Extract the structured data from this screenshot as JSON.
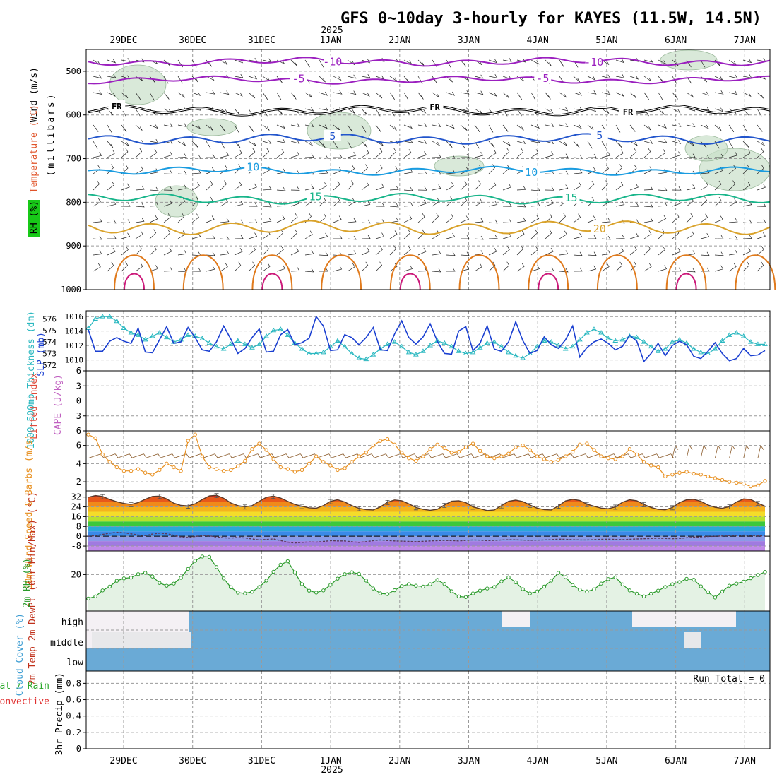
{
  "chart_data": {
    "type": "meteogram",
    "title": "GFS 0~10day 3-hourly for KAYES (11.5W, 14.5N)",
    "year_label": "2025",
    "date_ticks": [
      "29DEC",
      "30DEC",
      "31DEC",
      "1JAN",
      "2JAN",
      "3JAN",
      "4JAN",
      "5JAN",
      "6JAN",
      "7JAN"
    ],
    "run_total": "Run Total = 0",
    "colors": {
      "temp_purple": "#9b1fbf",
      "temp_black": "#000000",
      "temp_blue": "#2255cc",
      "temp_cyan": "#1a9ce0",
      "temp_green": "#18b58a",
      "temp_gold": "#d9a22a",
      "temp_orange": "#e07a1c",
      "temp_magenta": "#cc1a7a",
      "rh_fill": "#c9dfc9",
      "slp": "#1a3fd1",
      "thickness": "#2ab8c0",
      "wind10": "#e89020",
      "cloud": "#6aaad6",
      "rh2m": "#2a9a2a"
    },
    "upper": {
      "ylabel_wind": "Wind (m/s)",
      "ylabel_temp": "Temperature (°C)",
      "ylabel_rh": "RH (%)",
      "ylabel_units": "(millibars)",
      "yticks": [
        500,
        600,
        700,
        800,
        900,
        1000
      ],
      "ylim": [
        450,
        1000
      ],
      "isotherms": [
        {
          "label": "-10",
          "color": "temp_purple",
          "level": 478,
          "amp": 6,
          "labels_at": [
            0.36,
            0.74
          ]
        },
        {
          "label": "-5",
          "color": "temp_purple",
          "level": 520,
          "amp": 5,
          "labels_at": [
            0.31,
            0.67
          ]
        },
        {
          "label": "FR",
          "color": "temp_black",
          "level": 590,
          "amp": 7,
          "labels_at": [
            0.04,
            0.51,
            0.79
          ]
        },
        {
          "label": "5",
          "color": "temp_blue",
          "level": 655,
          "amp": 8,
          "labels_at": [
            0.36,
            0.75
          ]
        },
        {
          "label": "10",
          "color": "temp_cyan",
          "level": 728,
          "amp": 6,
          "labels_at": [
            0.24,
            0.65
          ]
        },
        {
          "label": "15",
          "color": "temp_green",
          "level": 792,
          "amp": 8,
          "labels_at": [
            0.33,
            0.71
          ]
        },
        {
          "label": "20",
          "color": "temp_gold",
          "level": 858,
          "amp": 12,
          "labels_at": [
            0.75
          ]
        }
      ]
    },
    "slp_panel": {
      "ylabel_slp": "SLP (mb)",
      "ylabel_thick": "1000-500mb Thickness (dm)",
      "slp_ticks": [
        1010,
        1012,
        1014,
        1016
      ],
      "thick_ticks": [
        572,
        573,
        574,
        575,
        576
      ],
      "slp_range": [
        1008.5,
        1016.8
      ],
      "thick_range": [
        571.5,
        576.7
      ],
      "slp": [
        1014.2,
        1011.2,
        1011.2,
        1012.6,
        1013.1,
        1012.6,
        1012.3,
        1014.4,
        1011.1,
        1011.0,
        1012.8,
        1014.6,
        1012.3,
        1012.5,
        1014.5,
        1013.1,
        1011.4,
        1011.2,
        1012.5,
        1014.7,
        1012.9,
        1010.9,
        1011.6,
        1013.1,
        1014.3,
        1011.1,
        1011.2,
        1013.5,
        1014.2,
        1012.1,
        1012.4,
        1013.0,
        1016.0,
        1014.7,
        1011.3,
        1011.4,
        1013.5,
        1013.1,
        1012.1,
        1013.1,
        1014.5,
        1011.4,
        1011.3,
        1013.6,
        1015.4,
        1013.1,
        1012.2,
        1013.2,
        1015.0,
        1012.6,
        1010.9,
        1010.8,
        1014.0,
        1014.6,
        1011.3,
        1012.3,
        1014.7,
        1011.5,
        1011.2,
        1012.5,
        1015.3,
        1012.7,
        1010.9,
        1011.3,
        1013.2,
        1012.1,
        1011.6,
        1012.8,
        1014.7,
        1010.4,
        1011.7,
        1012.5,
        1012.9,
        1012.3,
        1011.4,
        1011.9,
        1013.4,
        1012.6,
        1009.8,
        1010.9,
        1012.3,
        1010.6,
        1012.0,
        1012.6,
        1012.1,
        1010.5,
        1010.2,
        1011.2,
        1012.4,
        1010.9,
        1009.9,
        1010.2,
        1011.6,
        1010.6,
        1010.7,
        1011.3
      ],
      "thickness": [
        575.2,
        576.0,
        576.2,
        576.2,
        575.8,
        575.2,
        574.8,
        574.6,
        574.2,
        574.5,
        574.8,
        574.4,
        574.0,
        574.2,
        574.6,
        574.5,
        574.3,
        573.9,
        573.6,
        573.4,
        573.8,
        574.1,
        573.8,
        573.5,
        573.8,
        574.5,
        575.0,
        575.1,
        574.6,
        573.9,
        573.4,
        573.0,
        573.0,
        573.1,
        573.6,
        574.1,
        573.6,
        573.0,
        572.6,
        572.5,
        572.9,
        573.4,
        573.8,
        574.0,
        573.6,
        573.1,
        572.9,
        573.2,
        573.7,
        574.1,
        573.9,
        573.6,
        573.2,
        573.0,
        573.1,
        573.5,
        573.9,
        574.0,
        573.6,
        573.1,
        572.8,
        572.6,
        573.0,
        573.6,
        574.1,
        574.0,
        573.7,
        573.4,
        573.6,
        574.2,
        574.8,
        575.1,
        574.8,
        574.3,
        574.1,
        574.2,
        574.5,
        574.4,
        574.0,
        573.6,
        573.2,
        573.4,
        574.0,
        574.2,
        573.9,
        573.4,
        573.1,
        573.0,
        573.4,
        574.1,
        574.6,
        574.8,
        574.5,
        574.0,
        573.8,
        573.8
      ]
    },
    "cape_panel": {
      "ylabel_li": "Lifted Index",
      "ylabel_cape": "CAPE (J/kg)",
      "yticks": [
        -6,
        -3,
        0,
        3,
        6
      ],
      "tick_labels": [
        "6",
        "3",
        "0",
        "3",
        "6"
      ]
    },
    "wind10_panel": {
      "ylabel": "10m Wind Speed & Barbs (m/s)",
      "yticks": [
        2,
        4,
        6
      ],
      "ylim": [
        1,
        7.6
      ],
      "speed": [
        7.2,
        6.8,
        5.0,
        4.2,
        3.6,
        3.2,
        3.2,
        3.4,
        3.0,
        2.8,
        3.3,
        4.0,
        3.6,
        3.2,
        6.5,
        7.2,
        4.8,
        3.6,
        3.4,
        3.2,
        3.3,
        3.7,
        4.3,
        5.6,
        6.2,
        5.5,
        4.5,
        3.6,
        3.4,
        3.1,
        3.3,
        4.0,
        4.8,
        4.2,
        3.8,
        3.3,
        3.5,
        4.2,
        4.8,
        5.2,
        6.0,
        6.5,
        6.7,
        6.1,
        5.2,
        4.6,
        4.3,
        4.8,
        5.6,
        6.1,
        5.7,
        5.2,
        5.3,
        5.8,
        6.2,
        5.4,
        4.8,
        4.6,
        4.8,
        5.1,
        5.8,
        6.0,
        5.5,
        4.8,
        4.5,
        4.2,
        4.4,
        4.8,
        5.3,
        6.1,
        6.2,
        5.5,
        4.8,
        4.6,
        4.5,
        4.8,
        5.6,
        5.0,
        4.2,
        3.8,
        3.6,
        2.6,
        2.8,
        3.0,
        3.1,
        2.9,
        2.8,
        2.6,
        2.4,
        2.2,
        2.0,
        1.9,
        1.8,
        1.5,
        1.6,
        2.1
      ]
    },
    "temp2m_panel": {
      "ylabel": "2m Temp 2m DewPt (6hr Min/Max) (°C)",
      "yticks": [
        -8,
        0,
        8,
        16,
        24,
        32
      ],
      "ylim": [
        -12,
        37
      ],
      "temp": [
        31.8,
        33.2,
        32.5,
        30.0,
        28.2,
        26.8,
        26.0,
        27.5,
        30.2,
        32.5,
        32.8,
        30.5,
        27.0,
        25.2,
        24.8,
        26.5,
        30.0,
        32.9,
        33.4,
        31.0,
        27.2,
        25.0,
        24.1,
        25.0,
        28.5,
        31.8,
        32.8,
        31.2,
        28.5,
        26.0,
        24.5,
        23.2,
        22.9,
        25.0,
        28.5,
        29.8,
        28.0,
        25.0,
        22.8,
        21.8,
        21.5,
        24.0,
        27.8,
        29.6,
        29.0,
        26.5,
        23.5,
        22.0,
        21.2,
        22.0,
        25.5,
        28.6,
        29.0,
        27.5,
        24.0,
        22.5,
        21.0,
        21.5,
        25.0,
        28.5,
        29.5,
        28.3,
        25.5,
        23.0,
        21.8,
        21.5,
        24.8,
        28.8,
        30.2,
        29.2,
        26.2,
        24.5,
        23.0,
        22.5,
        24.0,
        27.8,
        29.8,
        29.0,
        26.0,
        23.5,
        22.0,
        21.6,
        23.5,
        27.5,
        29.8,
        30.2,
        28.5,
        25.5,
        23.6,
        22.8,
        24.2,
        28.0,
        30.5,
        30.0,
        27.0,
        24.5
      ],
      "dew": [
        0.0,
        0.5,
        1.5,
        2.5,
        3.2,
        2.8,
        2.0,
        1.0,
        0.5,
        1.8,
        2.5,
        2.0,
        0.8,
        -0.5,
        -1.0,
        -0.2,
        0.6,
        0.4,
        -0.6,
        -1.2,
        -1.5,
        -1.0,
        -1.4,
        -2.2,
        -3.0,
        -2.6,
        -2.2,
        -3.5,
        -4.8,
        -5.5,
        -5.0,
        -4.6,
        -4.8,
        -4.2,
        -3.6,
        -3.8,
        -3.8,
        -4.5,
        -5.0,
        -4.4,
        -3.6,
        -3.0,
        -3.5,
        -3.8,
        -4.0,
        -4.2,
        -4.4,
        -4.1,
        -3.8,
        -3.6,
        -3.4,
        -3.6,
        -3.8,
        -3.4,
        -3.0,
        -3.2,
        -3.6,
        -3.4,
        -3.0,
        -2.8,
        -2.9,
        -3.1,
        -3.3,
        -3.2,
        -3.0,
        -2.8,
        -2.4,
        -2.5,
        -2.8,
        -3.0,
        -3.0,
        -2.8,
        -2.5,
        -2.4,
        -2.6,
        -2.8,
        -2.5,
        -2.2,
        -2.0,
        -1.8,
        -1.6,
        -1.8,
        -2.0,
        -1.8,
        -1.2,
        -0.8,
        -0.5,
        -0.2,
        0.0,
        0.3,
        0.5,
        0.7,
        0.9,
        0.8,
        0.4,
        0.2
      ]
    },
    "rh2m_panel": {
      "ylabel": "2m RH (%)",
      "yticks": [
        20
      ],
      "ylim": [
        3,
        31
      ],
      "rh": [
        8.8,
        9.8,
        12.6,
        14.4,
        17.1,
        18.2,
        18.6,
        20.2,
        20.8,
        19.1,
        16.1,
        14.8,
        15.8,
        18.5,
        22.6,
        26.4,
        28.4,
        28.2,
        23.5,
        18.2,
        14.1,
        11.6,
        11.2,
        12.0,
        14.2,
        17.2,
        21.3,
        24.6,
        26.2,
        21.0,
        15.5,
        12.5,
        11.6,
        12.6,
        15.2,
        18.1,
        20.2,
        21.1,
        20.3,
        17.2,
        13.5,
        11.2,
        10.9,
        12.7,
        14.6,
        15.5,
        14.8,
        14.4,
        15.5,
        17.5,
        15.6,
        12.2,
        9.8,
        9.5,
        11.2,
        12.5,
        13.5,
        14.2,
        16.8,
        18.7,
        16.4,
        13.2,
        11.2,
        12.1,
        14.4,
        17.2,
        20.8,
        18.8,
        15.1,
        13.0,
        12.1,
        13.1,
        15.8,
        17.9,
        18.7,
        15.4,
        12.6,
        11.1,
        9.8,
        11.1,
        12.5,
        14.2,
        15.5,
        16.5,
        18.0,
        17.6,
        14.5,
        11.8,
        9.3,
        12.1,
        14.8,
        15.8,
        16.7,
        18.3,
        19.8,
        21.2
      ]
    },
    "cloud_panel": {
      "ylabel": "Cloud Cover (%)",
      "layer_labels": [
        "high",
        "middle",
        "low"
      ]
    },
    "precip_panel": {
      "ylabel_total": "Total / Rain",
      "ylabel_conv": "Convective",
      "ylabel": "3hr Precip (mm)",
      "yticks": [
        0,
        0.2,
        0.4,
        0.6,
        0.8
      ],
      "tick_labels": [
        "0",
        "0.2",
        "0.4",
        "0.6",
        "0.8"
      ],
      "ylim": [
        0,
        0.95
      ]
    }
  }
}
